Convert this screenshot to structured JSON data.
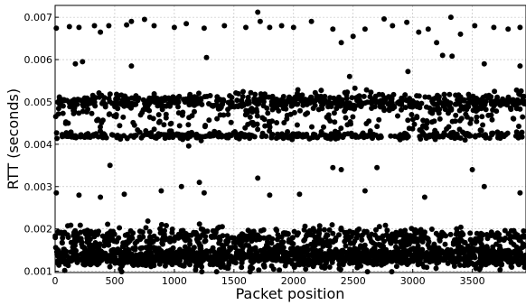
{
  "chart_data": {
    "type": "scatter",
    "title": "",
    "xlabel": "Packet position",
    "ylabel": "RTT (seconds)",
    "xlim": [
      0,
      3950
    ],
    "ylim": [
      0.00097,
      0.00728
    ],
    "xticks": [
      0,
      500,
      1000,
      1500,
      2000,
      2500,
      3000,
      3500
    ],
    "yticks": [
      0.001,
      0.002,
      0.003,
      0.004,
      0.005,
      0.006,
      0.007
    ],
    "xtick_labels": [
      "0",
      "500",
      "1000",
      "1500",
      "2000",
      "2500",
      "3000",
      "3500"
    ],
    "ytick_labels": [
      "0.001",
      "0.002",
      "0.003",
      "0.004",
      "0.005",
      "0.006",
      "0.007"
    ],
    "grid": true,
    "marker_color": "#000000",
    "series": [
      {
        "values_note": "approximate RTT samples per packet",
        "bands": [
          {
            "center": 0.00135,
            "spread": 0.00012,
            "fraction": 0.42
          },
          {
            "center": 0.0018,
            "spread": 0.00012,
            "fraction": 0.16
          },
          {
            "center": 0.0042,
            "spread": 4e-05,
            "fraction": 0.1
          },
          {
            "center": 0.005,
            "spread": 0.0001,
            "fraction": 0.18
          },
          {
            "center": 0.0046,
            "spread": 0.0002,
            "fraction": 0.06
          }
        ],
        "points": [
          {
            "x": 10,
            "y": 0.00674
          },
          {
            "x": 120,
            "y": 0.00678
          },
          {
            "x": 200,
            "y": 0.00676
          },
          {
            "x": 330,
            "y": 0.0068
          },
          {
            "x": 380,
            "y": 0.00665
          },
          {
            "x": 450,
            "y": 0.0068
          },
          {
            "x": 600,
            "y": 0.00682
          },
          {
            "x": 640,
            "y": 0.0069
          },
          {
            "x": 750,
            "y": 0.00695
          },
          {
            "x": 830,
            "y": 0.0068
          },
          {
            "x": 1000,
            "y": 0.00676
          },
          {
            "x": 1100,
            "y": 0.00685
          },
          {
            "x": 1250,
            "y": 0.00674
          },
          {
            "x": 1420,
            "y": 0.0068
          },
          {
            "x": 1600,
            "y": 0.00676
          },
          {
            "x": 1700,
            "y": 0.00712
          },
          {
            "x": 1720,
            "y": 0.0069
          },
          {
            "x": 1800,
            "y": 0.00676
          },
          {
            "x": 1900,
            "y": 0.0068
          },
          {
            "x": 2000,
            "y": 0.00676
          },
          {
            "x": 2150,
            "y": 0.0069
          },
          {
            "x": 2330,
            "y": 0.00672
          },
          {
            "x": 2400,
            "y": 0.0064
          },
          {
            "x": 2500,
            "y": 0.00655
          },
          {
            "x": 2600,
            "y": 0.00672
          },
          {
            "x": 2760,
            "y": 0.00696
          },
          {
            "x": 2830,
            "y": 0.0068
          },
          {
            "x": 2950,
            "y": 0.00688
          },
          {
            "x": 3050,
            "y": 0.00665
          },
          {
            "x": 3130,
            "y": 0.00672
          },
          {
            "x": 3200,
            "y": 0.0064
          },
          {
            "x": 3250,
            "y": 0.0061
          },
          {
            "x": 3320,
            "y": 0.007
          },
          {
            "x": 3400,
            "y": 0.0066
          },
          {
            "x": 3520,
            "y": 0.0068
          },
          {
            "x": 3680,
            "y": 0.00676
          },
          {
            "x": 3800,
            "y": 0.00672
          },
          {
            "x": 3900,
            "y": 0.00676
          },
          {
            "x": 170,
            "y": 0.0059
          },
          {
            "x": 230,
            "y": 0.00595
          },
          {
            "x": 640,
            "y": 0.00585
          },
          {
            "x": 1270,
            "y": 0.00605
          },
          {
            "x": 2470,
            "y": 0.0056
          },
          {
            "x": 2960,
            "y": 0.00572
          },
          {
            "x": 3330,
            "y": 0.00608
          },
          {
            "x": 3600,
            "y": 0.0059
          },
          {
            "x": 3900,
            "y": 0.00585
          },
          {
            "x": 460,
            "y": 0.0035
          },
          {
            "x": 1060,
            "y": 0.003
          },
          {
            "x": 1210,
            "y": 0.0031
          },
          {
            "x": 1700,
            "y": 0.0032
          },
          {
            "x": 2330,
            "y": 0.00345
          },
          {
            "x": 2400,
            "y": 0.0034
          },
          {
            "x": 2700,
            "y": 0.00345
          },
          {
            "x": 3500,
            "y": 0.0034
          },
          {
            "x": 3600,
            "y": 0.003
          },
          {
            "x": 10,
            "y": 0.00285
          },
          {
            "x": 200,
            "y": 0.0028
          },
          {
            "x": 380,
            "y": 0.00275
          },
          {
            "x": 580,
            "y": 0.00282
          },
          {
            "x": 890,
            "y": 0.0029
          },
          {
            "x": 1250,
            "y": 0.00285
          },
          {
            "x": 1800,
            "y": 0.0028
          },
          {
            "x": 2050,
            "y": 0.00282
          },
          {
            "x": 2600,
            "y": 0.0029
          },
          {
            "x": 3100,
            "y": 0.00275
          },
          {
            "x": 3900,
            "y": 0.00285
          }
        ]
      }
    ]
  }
}
